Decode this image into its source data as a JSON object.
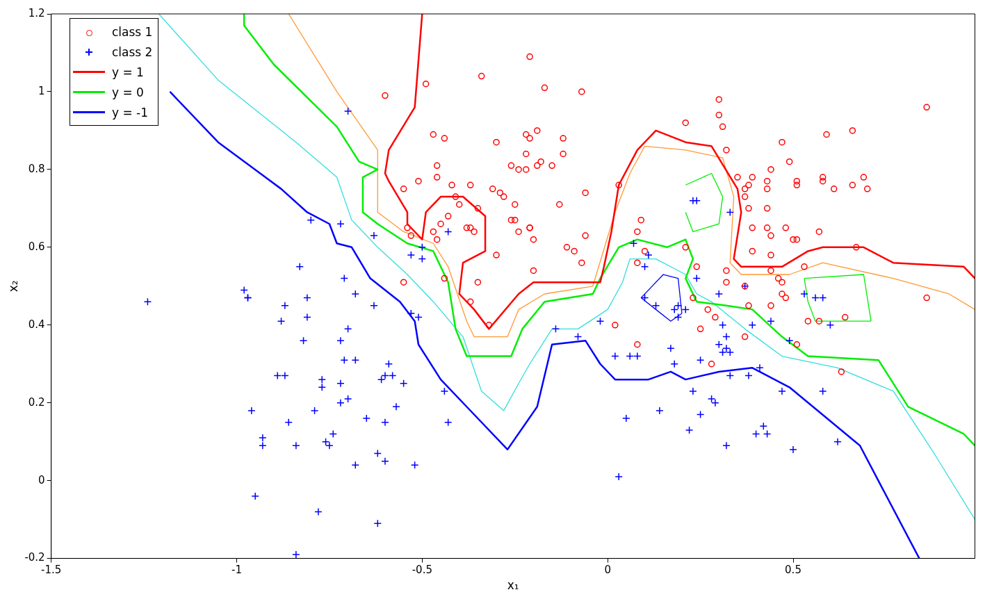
{
  "chart_data": {
    "type": "scatter",
    "xlabel": "x₁",
    "ylabel": "x₂",
    "xlim": [
      -1.5,
      0.99
    ],
    "ylim": [
      -0.2,
      1.2
    ],
    "xticks": [
      -1.5,
      -1,
      -0.5,
      0,
      0.5
    ],
    "yticks": [
      -0.2,
      0,
      0.2,
      0.4,
      0.6,
      0.8,
      1,
      1.2
    ],
    "grid": false,
    "legend": "top left",
    "series": [
      {
        "name": "class 1",
        "type": "scatter",
        "marker": "circle",
        "color": "#ff0000",
        "x": [
          -0.6,
          -0.49,
          -0.21,
          -0.34,
          -0.17,
          -0.07,
          -0.47,
          -0.44,
          -0.22,
          -0.21,
          -0.19,
          -0.12,
          -0.3,
          -0.46,
          -0.46,
          -0.26,
          -0.24,
          -0.22,
          -0.22,
          -0.19,
          -0.18,
          -0.12,
          -0.15,
          -0.51,
          -0.55,
          -0.42,
          -0.37,
          -0.31,
          -0.29,
          -0.28,
          -0.41,
          -0.4,
          -0.35,
          -0.25,
          -0.26,
          -0.25,
          -0.13,
          -0.06,
          -0.24,
          -0.21,
          -0.2,
          -0.21,
          -0.37,
          -0.36,
          -0.43,
          -0.45,
          -0.38,
          -0.54,
          -0.53,
          -0.47,
          -0.46,
          -0.3,
          -0.11,
          -0.09,
          -0.06,
          -0.07,
          -0.2,
          -0.44,
          -0.55,
          -0.35,
          -0.37,
          -0.32,
          0.02,
          0.03,
          0.21,
          0.09,
          0.08,
          0.1,
          0.08,
          0.21,
          0.24,
          0.3,
          0.3,
          0.31,
          0.32,
          0.23,
          0.25,
          0.27,
          0.32,
          0.32,
          0.37,
          0.37,
          0.35,
          0.37,
          0.38,
          0.39,
          0.39,
          0.38,
          0.37,
          0.28,
          0.08,
          0.39,
          0.38,
          0.43,
          0.43,
          0.44,
          0.44,
          0.44,
          0.43,
          0.44,
          0.43,
          0.47,
          0.49,
          0.48,
          0.46,
          0.44,
          0.47,
          0.48,
          0.47,
          0.5,
          0.51,
          0.51,
          0.51,
          0.53,
          0.51,
          0.54,
          0.57,
          0.57,
          0.58,
          0.58,
          0.59,
          0.61,
          0.66,
          0.66,
          0.67,
          0.69,
          0.7,
          0.64,
          0.63,
          0.86,
          0.86,
          0.29
        ],
        "values": [
          0.99,
          1.02,
          1.09,
          1.04,
          1.01,
          1.0,
          0.89,
          0.88,
          0.89,
          0.88,
          0.9,
          0.88,
          0.87,
          0.81,
          0.78,
          0.81,
          0.8,
          0.8,
          0.84,
          0.81,
          0.82,
          0.84,
          0.81,
          0.77,
          0.75,
          0.76,
          0.76,
          0.75,
          0.74,
          0.73,
          0.73,
          0.71,
          0.7,
          0.71,
          0.67,
          0.67,
          0.71,
          0.74,
          0.64,
          0.65,
          0.62,
          0.65,
          0.65,
          0.64,
          0.68,
          0.66,
          0.65,
          0.65,
          0.63,
          0.64,
          0.62,
          0.58,
          0.6,
          0.59,
          0.63,
          0.56,
          0.54,
          0.52,
          0.51,
          0.51,
          0.46,
          0.4,
          0.4,
          0.76,
          0.92,
          0.67,
          0.64,
          0.59,
          0.56,
          0.6,
          0.55,
          0.98,
          0.94,
          0.91,
          0.85,
          0.47,
          0.39,
          0.44,
          0.51,
          0.54,
          0.5,
          0.73,
          0.78,
          0.75,
          0.7,
          0.65,
          0.59,
          0.45,
          0.37,
          0.3,
          0.35,
          0.78,
          0.76,
          0.7,
          0.65,
          0.63,
          0.58,
          0.54,
          0.75,
          0.8,
          0.77,
          0.87,
          0.82,
          0.65,
          0.52,
          0.45,
          0.48,
          0.47,
          0.51,
          0.62,
          0.62,
          0.77,
          0.76,
          0.55,
          0.35,
          0.41,
          0.41,
          0.64,
          0.78,
          0.77,
          0.89,
          0.75,
          0.76,
          0.9,
          0.6,
          0.78,
          0.75,
          0.42,
          0.28,
          0.96,
          0.47,
          0.42
        ]
      },
      {
        "name": "class 2",
        "type": "scatter",
        "marker": "cross",
        "color": "#0000ff",
        "x": [
          -0.7,
          -0.8,
          -0.72,
          -1.24,
          -0.98,
          -0.97,
          -0.97,
          -0.88,
          -0.87,
          -0.83,
          -0.81,
          -0.81,
          -0.82,
          -0.89,
          -0.87,
          -0.96,
          -0.93,
          -0.93,
          -0.86,
          -0.84,
          -0.95,
          -0.78,
          -0.84,
          -0.79,
          -0.77,
          -0.77,
          -0.76,
          -0.75,
          -0.74,
          -0.72,
          -0.72,
          -0.71,
          -0.7,
          -0.7,
          -0.72,
          -0.71,
          -0.68,
          -0.68,
          -0.68,
          -0.65,
          -0.63,
          -0.63,
          -0.6,
          -0.59,
          -0.61,
          -0.6,
          -0.58,
          -0.57,
          -0.55,
          -0.62,
          -0.6,
          -0.62,
          -0.52,
          -0.53,
          -0.51,
          -0.53,
          -0.5,
          -0.5,
          -0.43,
          -0.44,
          -0.43,
          -0.14,
          -0.08,
          -0.02,
          0.02,
          0.03,
          0.05,
          0.06,
          0.08,
          0.07,
          0.11,
          0.1,
          0.1,
          0.13,
          0.14,
          0.17,
          0.18,
          0.19,
          0.19,
          0.18,
          0.21,
          0.22,
          0.23,
          0.23,
          0.24,
          0.24,
          0.25,
          0.25,
          0.28,
          0.29,
          0.3,
          0.3,
          0.31,
          0.31,
          0.32,
          0.32,
          0.33,
          0.32,
          0.33,
          0.33,
          0.37,
          0.38,
          0.39,
          0.4,
          0.41,
          0.42,
          0.43,
          0.44,
          0.47,
          0.49,
          0.5,
          0.53,
          0.56,
          0.58,
          0.58,
          0.6,
          0.62
        ],
        "values": [
          0.95,
          0.67,
          0.66,
          0.46,
          0.49,
          0.47,
          0.47,
          0.41,
          0.45,
          0.55,
          0.47,
          0.42,
          0.36,
          0.27,
          0.27,
          0.18,
          0.11,
          0.09,
          0.15,
          0.09,
          -0.04,
          -0.08,
          -0.19,
          0.18,
          0.26,
          0.24,
          0.1,
          0.09,
          0.12,
          0.2,
          0.25,
          0.31,
          0.21,
          0.39,
          0.36,
          0.52,
          0.48,
          0.31,
          0.04,
          0.16,
          0.63,
          0.45,
          0.15,
          0.3,
          0.26,
          0.27,
          0.27,
          0.19,
          0.25,
          0.07,
          0.05,
          -0.11,
          0.04,
          0.43,
          0.42,
          0.58,
          0.57,
          0.6,
          0.64,
          0.23,
          0.15,
          0.39,
          0.37,
          0.41,
          0.32,
          0.01,
          0.16,
          0.32,
          0.32,
          0.61,
          0.58,
          0.55,
          0.47,
          0.45,
          0.18,
          0.34,
          0.44,
          0.45,
          0.42,
          0.3,
          0.44,
          0.13,
          0.23,
          0.72,
          0.72,
          0.52,
          0.31,
          0.17,
          0.21,
          0.2,
          0.35,
          0.48,
          0.33,
          0.4,
          0.37,
          0.34,
          0.33,
          0.09,
          0.69,
          0.27,
          0.5,
          0.27,
          0.4,
          0.12,
          0.29,
          0.14,
          0.12,
          0.41,
          0.23,
          0.36,
          0.08,
          0.48,
          0.47,
          0.47,
          0.23,
          0.4,
          0.1
        ]
      },
      {
        "name": "y = 1",
        "type": "line",
        "marker": "none",
        "color": "#ff0000",
        "x": [
          -0.5,
          -0.52,
          -0.59,
          -0.6,
          -0.59,
          -0.54,
          -0.54,
          -0.5,
          -0.49,
          -0.45,
          -0.39,
          -0.33,
          -0.33,
          -0.39,
          -0.4,
          -0.36,
          -0.32,
          -0.24,
          -0.2,
          -0.02,
          -0.01,
          0.01,
          0.03,
          0.08,
          0.13,
          0.21,
          0.28,
          0.35,
          0.36,
          0.34,
          0.36,
          0.47,
          0.54,
          0.58,
          0.69,
          0.77,
          0.96,
          0.99
        ],
        "values": [
          1.2,
          0.96,
          0.85,
          0.79,
          0.77,
          0.69,
          0.66,
          0.62,
          0.69,
          0.73,
          0.73,
          0.68,
          0.59,
          0.56,
          0.48,
          0.44,
          0.39,
          0.48,
          0.51,
          0.51,
          0.55,
          0.64,
          0.76,
          0.85,
          0.9,
          0.87,
          0.86,
          0.75,
          0.69,
          0.57,
          0.55,
          0.55,
          0.59,
          0.6,
          0.6,
          0.56,
          0.55,
          0.52
        ]
      },
      {
        "name": "y = 0",
        "type": "line",
        "marker": "none",
        "color": "#00ee00",
        "x": [
          -0.98,
          -0.98,
          -0.9,
          -0.73,
          -0.67,
          -0.62,
          -0.66,
          -0.66,
          -0.62,
          -0.54,
          -0.47,
          -0.43,
          -0.41,
          -0.38,
          -0.26,
          -0.23,
          -0.17,
          -0.04,
          -0.02,
          0.03,
          0.08,
          0.16,
          0.21,
          0.23,
          0.21,
          0.24,
          0.32,
          0.39,
          0.47,
          0.54,
          0.73,
          0.81,
          0.96,
          0.99
        ],
        "values": [
          1.2,
          1.17,
          1.07,
          0.91,
          0.82,
          0.8,
          0.78,
          0.69,
          0.66,
          0.61,
          0.59,
          0.51,
          0.39,
          0.32,
          0.32,
          0.39,
          0.46,
          0.48,
          0.52,
          0.6,
          0.62,
          0.6,
          0.62,
          0.57,
          0.52,
          0.46,
          0.45,
          0.44,
          0.37,
          0.32,
          0.31,
          0.19,
          0.12,
          0.09
        ]
      },
      {
        "name": "y = -1",
        "type": "line",
        "marker": "none",
        "color": "#0000ff",
        "x": [
          -1.18,
          -1.05,
          -0.88,
          -0.81,
          -0.75,
          -0.73,
          -0.69,
          -0.64,
          -0.56,
          -0.52,
          -0.51,
          -0.45,
          -0.36,
          -0.27,
          -0.19,
          -0.15,
          -0.06,
          -0.02,
          0.02,
          0.11,
          0.17,
          0.21,
          0.3,
          0.39,
          0.49,
          0.68,
          0.84
        ],
        "values": [
          1.0,
          0.87,
          0.75,
          0.69,
          0.66,
          0.61,
          0.6,
          0.52,
          0.46,
          0.41,
          0.35,
          0.26,
          0.17,
          0.08,
          0.19,
          0.35,
          0.36,
          0.3,
          0.26,
          0.26,
          0.28,
          0.26,
          0.28,
          0.29,
          0.24,
          0.09,
          -0.2
        ]
      },
      {
        "type": "line",
        "marker": "none",
        "color": "#00ee00",
        "x": [
          0.21,
          0.28,
          0.31
        ],
        "values": [
          0.76,
          0.79,
          0.73
        ]
      },
      {
        "type": "line",
        "marker": "none",
        "color": "#00ee00",
        "x": [
          0.21,
          0.23,
          0.3,
          0.31
        ],
        "values": [
          0.69,
          0.64,
          0.66,
          0.73
        ]
      },
      {
        "type": "line",
        "marker": "none",
        "color": "#00ee00",
        "x": [
          0.53,
          0.69,
          0.71
        ],
        "values": [
          0.52,
          0.53,
          0.41
        ]
      },
      {
        "type": "line",
        "marker": "none",
        "color": "#00ee00",
        "x": [
          0.53,
          0.54,
          0.56,
          0.71
        ],
        "values": [
          0.52,
          0.46,
          0.41,
          0.41
        ]
      },
      {
        "type": "line",
        "marker": "none",
        "color": "#0000ff",
        "x": [
          0.09,
          0.15,
          0.19,
          0.2
        ],
        "values": [
          0.47,
          0.53,
          0.52,
          0.43
        ]
      },
      {
        "type": "line",
        "marker": "none",
        "color": "#0000ff",
        "x": [
          0.09,
          0.13,
          0.17,
          0.2
        ],
        "values": [
          0.47,
          0.44,
          0.41,
          0.43
        ]
      },
      {
        "type": "line",
        "marker": "none",
        "color": "#ff9933",
        "x": [
          -0.86,
          -0.73,
          -0.62,
          -0.62,
          -0.55,
          -0.47,
          -0.43,
          -0.38,
          -0.36,
          -0.27,
          -0.24,
          -0.17,
          -0.04,
          0.02,
          0.06,
          0.1,
          0.21,
          0.31,
          0.34,
          0.33,
          0.36,
          0.49,
          0.58,
          0.77,
          0.92,
          0.99
        ],
        "values": [
          1.2,
          1.0,
          0.85,
          0.69,
          0.64,
          0.61,
          0.55,
          0.41,
          0.37,
          0.37,
          0.44,
          0.48,
          0.5,
          0.69,
          0.79,
          0.86,
          0.85,
          0.83,
          0.73,
          0.56,
          0.53,
          0.53,
          0.56,
          0.52,
          0.48,
          0.44
        ]
      },
      {
        "type": "line",
        "marker": "none",
        "color": "#33dddd",
        "x": [
          -1.21,
          -1.05,
          -0.84,
          -0.73,
          -0.69,
          -0.62,
          -0.54,
          -0.47,
          -0.39,
          -0.34,
          -0.28,
          -0.24,
          -0.21,
          -0.15,
          -0.08,
          0,
          0.04,
          0.06,
          0.13,
          0.21,
          0.24,
          0.28,
          0.37,
          0.47,
          0.62,
          0.77,
          0.88,
          0.99
        ],
        "values": [
          1.2,
          1.03,
          0.87,
          0.78,
          0.67,
          0.6,
          0.53,
          0.46,
          0.37,
          0.23,
          0.18,
          0.25,
          0.3,
          0.39,
          0.39,
          0.44,
          0.51,
          0.57,
          0.57,
          0.53,
          0.48,
          0.46,
          0.39,
          0.32,
          0.29,
          0.23,
          0.07,
          -0.1
        ]
      }
    ]
  }
}
